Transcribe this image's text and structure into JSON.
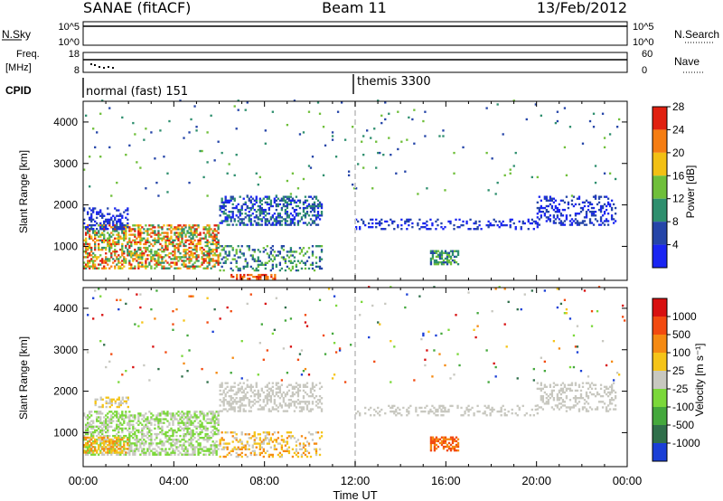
{
  "header": {
    "station": "SANAE (fitACF)",
    "beam": "Beam 11",
    "date": "13/Feb/2012"
  },
  "noise_panel": {
    "left_label": "N.Sky",
    "right_label": "N.Search",
    "left_ticks": [
      "10^5",
      "10^0"
    ],
    "right_ticks": [
      "10^5",
      "10^0"
    ]
  },
  "freq_panel": {
    "left_label_1": "Freq.",
    "left_label_2": "[MHz]",
    "right_label": "Nave",
    "left_ticks": [
      "18",
      "8"
    ],
    "right_ticks": [
      "60",
      "0"
    ]
  },
  "cpid": {
    "label": "CPID",
    "segments": [
      {
        "label": "normal (fast) 151",
        "start_hour": 0
      },
      {
        "label": "themis 3300",
        "start_hour": 12
      }
    ]
  },
  "colors": {
    "gap_line": "#cccccc",
    "frame": "#000000"
  },
  "chart_data": [
    {
      "type": "heatmap",
      "panel": "power",
      "ylabel": "Slant Range [km]",
      "xlabel": "",
      "ylim": [
        180,
        4500
      ],
      "xlim_hours": [
        0,
        24
      ],
      "yticks": [
        1000,
        2000,
        3000,
        4000
      ],
      "colorbar": {
        "label": "Power [dB]",
        "ticks": [
          "4",
          "8",
          "12",
          "16",
          "20",
          "24",
          "28"
        ],
        "colors": [
          "#1a25f2",
          "#2545a8",
          "#2e8f6e",
          "#6fbf3a",
          "#f2c014",
          "#f57d12",
          "#e02010"
        ]
      },
      "regions": [
        {
          "start": 0.0,
          "end": 6.0,
          "rmin": 450,
          "rmax": 1500,
          "c": [
            2,
            6
          ],
          "d": 0.55
        },
        {
          "start": 0.0,
          "end": 2.0,
          "rmin": 1400,
          "rmax": 1900,
          "c": [
            0,
            1
          ],
          "d": 0.35
        },
        {
          "start": 6.0,
          "end": 10.5,
          "rmin": 1500,
          "rmax": 2200,
          "c": [
            0,
            2
          ],
          "d": 0.45
        },
        {
          "start": 6.0,
          "end": 10.5,
          "rmin": 400,
          "rmax": 1000,
          "c": [
            1,
            3
          ],
          "d": 0.3
        },
        {
          "start": 6.5,
          "end": 8.5,
          "rmin": 200,
          "rmax": 320,
          "c": [
            5,
            6
          ],
          "d": 0.55
        },
        {
          "start": 12.0,
          "end": 20.0,
          "rmin": 1400,
          "rmax": 1650,
          "c": [
            0,
            1
          ],
          "d": 0.25
        },
        {
          "start": 15.3,
          "end": 16.5,
          "rmin": 550,
          "rmax": 900,
          "c": [
            1,
            3
          ],
          "d": 0.6
        },
        {
          "start": 20.0,
          "end": 23.5,
          "rmin": 1500,
          "rmax": 2200,
          "c": [
            0,
            1
          ],
          "d": 0.3
        },
        {
          "start": 0.0,
          "end": 24.0,
          "rmin": 2200,
          "rmax": 4500,
          "c": [
            1,
            3
          ],
          "d": 0.012
        }
      ]
    },
    {
      "type": "heatmap",
      "panel": "velocity",
      "ylabel": "Slant Range [km]",
      "xlabel": "Time UT",
      "ylim": [
        180,
        4500
      ],
      "xlim_hours": [
        0,
        24
      ],
      "yticks": [
        1000,
        2000,
        3000,
        4000
      ],
      "xticks": [
        "00:00",
        "04:00",
        "08:00",
        "12:00",
        "16:00",
        "20:00",
        "00:00"
      ],
      "colorbar": {
        "label": "Velocity [m s⁻¹]",
        "ticks": [
          "1000",
          "500",
          "100",
          "25",
          "-25",
          "-100",
          "-500",
          "-1000"
        ],
        "colors": [
          "#1a3fd6",
          "#2f6f4a",
          "#44a83c",
          "#7bd83a",
          "#c8c8c0",
          "#f5c418",
          "#f58a12",
          "#f24a10",
          "#d81010"
        ]
      },
      "regions": [
        {
          "start": 0.0,
          "end": 6.0,
          "rmin": 450,
          "rmax": 1500,
          "c": [
            3,
            4
          ],
          "d": 0.5
        },
        {
          "start": 0.0,
          "end": 2.0,
          "rmin": 500,
          "rmax": 900,
          "c": [
            5,
            6
          ],
          "d": 0.5
        },
        {
          "start": 0.5,
          "end": 2.0,
          "rmin": 1600,
          "rmax": 1850,
          "c": [
            4,
            5
          ],
          "d": 0.4
        },
        {
          "start": 6.0,
          "end": 10.5,
          "rmin": 1500,
          "rmax": 2200,
          "c": [
            4,
            4
          ],
          "d": 0.4
        },
        {
          "start": 6.0,
          "end": 10.5,
          "rmin": 400,
          "rmax": 1000,
          "c": [
            4,
            6
          ],
          "d": 0.3
        },
        {
          "start": 12.0,
          "end": 20.0,
          "rmin": 1400,
          "rmax": 1650,
          "c": [
            4,
            4
          ],
          "d": 0.25
        },
        {
          "start": 15.3,
          "end": 16.5,
          "rmin": 550,
          "rmax": 900,
          "c": [
            6,
            7
          ],
          "d": 0.6
        },
        {
          "start": 20.0,
          "end": 23.5,
          "rmin": 1500,
          "rmax": 2200,
          "c": [
            4,
            4
          ],
          "d": 0.3
        },
        {
          "start": 0.0,
          "end": 24.0,
          "rmin": 2200,
          "rmax": 4500,
          "c": [
            0,
            8
          ],
          "d": 0.012
        }
      ]
    }
  ]
}
